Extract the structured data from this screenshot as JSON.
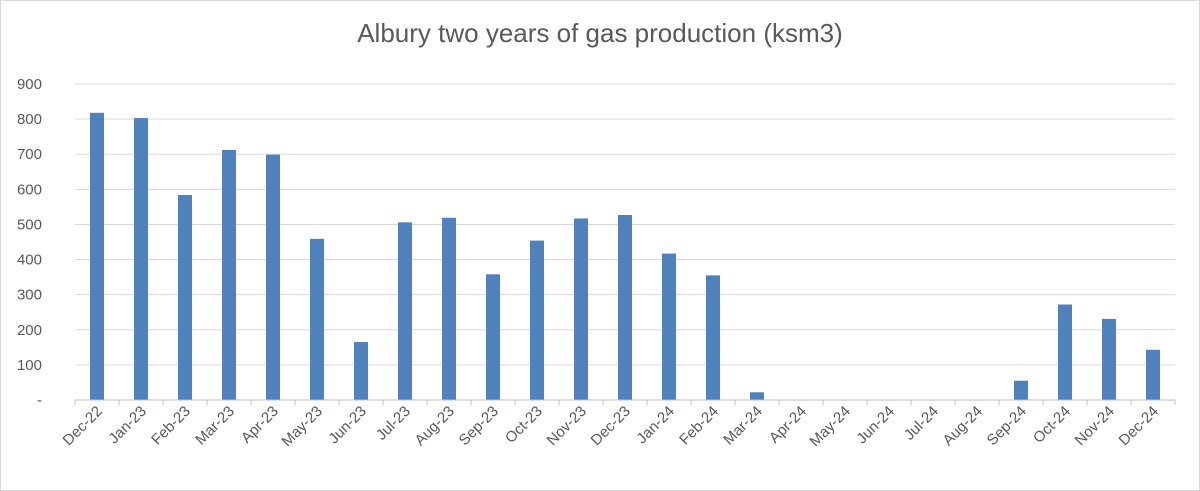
{
  "chart_data": {
    "type": "bar",
    "title": "Albury two years of gas production (ksm3)",
    "xlabel": "",
    "ylabel": "",
    "ylim": [
      0,
      900
    ],
    "yticks": [
      {
        "value": 0,
        "label": "-"
      },
      {
        "value": 100,
        "label": "100"
      },
      {
        "value": 200,
        "label": "200"
      },
      {
        "value": 300,
        "label": "300"
      },
      {
        "value": 400,
        "label": "400"
      },
      {
        "value": 500,
        "label": "500"
      },
      {
        "value": 600,
        "label": "600"
      },
      {
        "value": 700,
        "label": "700"
      },
      {
        "value": 800,
        "label": "800"
      },
      {
        "value": 900,
        "label": "900"
      }
    ],
    "grid": true,
    "legend": "none",
    "bar_color": "#4f81bd",
    "categories": [
      "Dec-22",
      "Jan-23",
      "Feb-23",
      "Mar-23",
      "Apr-23",
      "May-23",
      "Jun-23",
      "Jul-23",
      "Aug-23",
      "Sep-23",
      "Oct-23",
      "Nov-23",
      "Dec-23",
      "Jan-24",
      "Feb-24",
      "Mar-24",
      "Apr-24",
      "May-24",
      "Jun-24",
      "Jul-24",
      "Aug-24",
      "Sep-24",
      "Oct-24",
      "Nov-24",
      "Dec-24"
    ],
    "values": [
      818,
      803,
      584,
      712,
      699,
      459,
      165,
      506,
      519,
      358,
      454,
      517,
      527,
      417,
      355,
      22,
      0,
      0,
      0,
      0,
      0,
      55,
      272,
      231,
      143
    ]
  }
}
